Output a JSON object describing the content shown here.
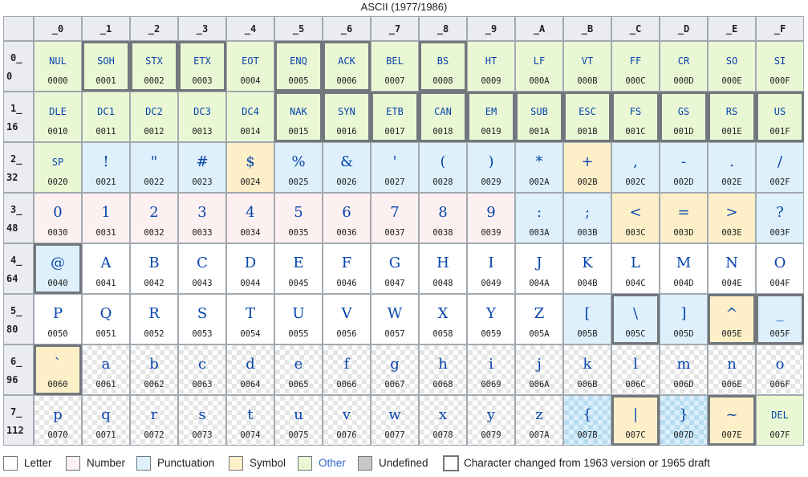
{
  "title": "ASCII (1977/1986)",
  "colors": {
    "letter": "#ffffff",
    "number": "#fdf0f0",
    "punctuation": "#ddf0fb",
    "symbol": "#fdf0c8",
    "other": "#eaf7d4",
    "undefined": "#c8c8c8",
    "header": "#eaecf0",
    "symbol_text": "#0645ad"
  },
  "columns": [
    "_0",
    "_1",
    "_2",
    "_3",
    "_4",
    "_5",
    "_6",
    "_7",
    "_8",
    "_9",
    "_A",
    "_B",
    "_C",
    "_D",
    "_E",
    "_F"
  ],
  "rows": [
    {
      "hex": "0_",
      "dec": "0",
      "cells": [
        {
          "s": "NUL",
          "c": "0000",
          "t": "other",
          "x": false
        },
        {
          "s": "SOH",
          "c": "0001",
          "t": "other",
          "x": true
        },
        {
          "s": "STX",
          "c": "0002",
          "t": "other",
          "x": true
        },
        {
          "s": "ETX",
          "c": "0003",
          "t": "other",
          "x": true
        },
        {
          "s": "EOT",
          "c": "0004",
          "t": "other",
          "x": false
        },
        {
          "s": "ENQ",
          "c": "0005",
          "t": "other",
          "x": true
        },
        {
          "s": "ACK",
          "c": "0006",
          "t": "other",
          "x": true
        },
        {
          "s": "BEL",
          "c": "0007",
          "t": "other",
          "x": false
        },
        {
          "s": "BS",
          "c": "0008",
          "t": "other",
          "x": true
        },
        {
          "s": "HT",
          "c": "0009",
          "t": "other",
          "x": false
        },
        {
          "s": "LF",
          "c": "000A",
          "t": "other",
          "x": false
        },
        {
          "s": "VT",
          "c": "000B",
          "t": "other",
          "x": false
        },
        {
          "s": "FF",
          "c": "000C",
          "t": "other",
          "x": false
        },
        {
          "s": "CR",
          "c": "000D",
          "t": "other",
          "x": false
        },
        {
          "s": "SO",
          "c": "000E",
          "t": "other",
          "x": false
        },
        {
          "s": "SI",
          "c": "000F",
          "t": "other",
          "x": false
        }
      ]
    },
    {
      "hex": "1_",
      "dec": "16",
      "cells": [
        {
          "s": "DLE",
          "c": "0010",
          "t": "other",
          "x": false
        },
        {
          "s": "DC1",
          "c": "0011",
          "t": "other",
          "x": false
        },
        {
          "s": "DC2",
          "c": "0012",
          "t": "other",
          "x": false
        },
        {
          "s": "DC3",
          "c": "0013",
          "t": "other",
          "x": false
        },
        {
          "s": "DC4",
          "c": "0014",
          "t": "other",
          "x": false
        },
        {
          "s": "NAK",
          "c": "0015",
          "t": "other",
          "x": true
        },
        {
          "s": "SYN",
          "c": "0016",
          "t": "other",
          "x": true
        },
        {
          "s": "ETB",
          "c": "0017",
          "t": "other",
          "x": true
        },
        {
          "s": "CAN",
          "c": "0018",
          "t": "other",
          "x": true
        },
        {
          "s": "EM",
          "c": "0019",
          "t": "other",
          "x": true
        },
        {
          "s": "SUB",
          "c": "001A",
          "t": "other",
          "x": true
        },
        {
          "s": "ESC",
          "c": "001B",
          "t": "other",
          "x": true
        },
        {
          "s": "FS",
          "c": "001C",
          "t": "other",
          "x": true
        },
        {
          "s": "GS",
          "c": "001D",
          "t": "other",
          "x": true
        },
        {
          "s": "RS",
          "c": "001E",
          "t": "other",
          "x": true
        },
        {
          "s": "US",
          "c": "001F",
          "t": "other",
          "x": true
        }
      ]
    },
    {
      "hex": "2_",
      "dec": "32",
      "cells": [
        {
          "s": "SP",
          "c": "0020",
          "t": "other",
          "x": false
        },
        {
          "s": "!",
          "c": "0021",
          "t": "punctuation",
          "x": false
        },
        {
          "s": "\"",
          "c": "0022",
          "t": "punctuation",
          "x": false
        },
        {
          "s": "#",
          "c": "0023",
          "t": "punctuation",
          "x": false
        },
        {
          "s": "$",
          "c": "0024",
          "t": "symbol",
          "x": false
        },
        {
          "s": "%",
          "c": "0025",
          "t": "punctuation",
          "x": false
        },
        {
          "s": "&",
          "c": "0026",
          "t": "punctuation",
          "x": false
        },
        {
          "s": "'",
          "c": "0027",
          "t": "punctuation",
          "x": false
        },
        {
          "s": "(",
          "c": "0028",
          "t": "punctuation",
          "x": false
        },
        {
          "s": ")",
          "c": "0029",
          "t": "punctuation",
          "x": false
        },
        {
          "s": "*",
          "c": "002A",
          "t": "punctuation",
          "x": false
        },
        {
          "s": "+",
          "c": "002B",
          "t": "symbol",
          "x": false
        },
        {
          "s": ",",
          "c": "002C",
          "t": "punctuation",
          "x": false
        },
        {
          "s": "-",
          "c": "002D",
          "t": "punctuation",
          "x": false
        },
        {
          "s": ".",
          "c": "002E",
          "t": "punctuation",
          "x": false
        },
        {
          "s": "/",
          "c": "002F",
          "t": "punctuation",
          "x": false
        }
      ]
    },
    {
      "hex": "3_",
      "dec": "48",
      "cells": [
        {
          "s": "0",
          "c": "0030",
          "t": "number",
          "x": false
        },
        {
          "s": "1",
          "c": "0031",
          "t": "number",
          "x": false
        },
        {
          "s": "2",
          "c": "0032",
          "t": "number",
          "x": false
        },
        {
          "s": "3",
          "c": "0033",
          "t": "number",
          "x": false
        },
        {
          "s": "4",
          "c": "0034",
          "t": "number",
          "x": false
        },
        {
          "s": "5",
          "c": "0035",
          "t": "number",
          "x": false
        },
        {
          "s": "6",
          "c": "0036",
          "t": "number",
          "x": false
        },
        {
          "s": "7",
          "c": "0037",
          "t": "number",
          "x": false
        },
        {
          "s": "8",
          "c": "0038",
          "t": "number",
          "x": false
        },
        {
          "s": "9",
          "c": "0039",
          "t": "number",
          "x": false
        },
        {
          "s": ":",
          "c": "003A",
          "t": "punctuation",
          "x": false
        },
        {
          "s": ";",
          "c": "003B",
          "t": "punctuation",
          "x": false
        },
        {
          "s": "<",
          "c": "003C",
          "t": "symbol",
          "x": false
        },
        {
          "s": "=",
          "c": "003D",
          "t": "symbol",
          "x": false
        },
        {
          "s": ">",
          "c": "003E",
          "t": "symbol",
          "x": false
        },
        {
          "s": "?",
          "c": "003F",
          "t": "punctuation",
          "x": false
        }
      ]
    },
    {
      "hex": "4_",
      "dec": "64",
      "cells": [
        {
          "s": "@",
          "c": "0040",
          "t": "punctuation",
          "x": true
        },
        {
          "s": "A",
          "c": "0041",
          "t": "letter",
          "x": false
        },
        {
          "s": "B",
          "c": "0042",
          "t": "letter",
          "x": false
        },
        {
          "s": "C",
          "c": "0043",
          "t": "letter",
          "x": false
        },
        {
          "s": "D",
          "c": "0044",
          "t": "letter",
          "x": false
        },
        {
          "s": "E",
          "c": "0045",
          "t": "letter",
          "x": false
        },
        {
          "s": "F",
          "c": "0046",
          "t": "letter",
          "x": false
        },
        {
          "s": "G",
          "c": "0047",
          "t": "letter",
          "x": false
        },
        {
          "s": "H",
          "c": "0048",
          "t": "letter",
          "x": false
        },
        {
          "s": "I",
          "c": "0049",
          "t": "letter",
          "x": false
        },
        {
          "s": "J",
          "c": "004A",
          "t": "letter",
          "x": false
        },
        {
          "s": "K",
          "c": "004B",
          "t": "letter",
          "x": false
        },
        {
          "s": "L",
          "c": "004C",
          "t": "letter",
          "x": false
        },
        {
          "s": "M",
          "c": "004D",
          "t": "letter",
          "x": false
        },
        {
          "s": "N",
          "c": "004E",
          "t": "letter",
          "x": false
        },
        {
          "s": "O",
          "c": "004F",
          "t": "letter",
          "x": false
        }
      ]
    },
    {
      "hex": "5_",
      "dec": "80",
      "cells": [
        {
          "s": "P",
          "c": "0050",
          "t": "letter",
          "x": false
        },
        {
          "s": "Q",
          "c": "0051",
          "t": "letter",
          "x": false
        },
        {
          "s": "R",
          "c": "0052",
          "t": "letter",
          "x": false
        },
        {
          "s": "S",
          "c": "0053",
          "t": "letter",
          "x": false
        },
        {
          "s": "T",
          "c": "0054",
          "t": "letter",
          "x": false
        },
        {
          "s": "U",
          "c": "0055",
          "t": "letter",
          "x": false
        },
        {
          "s": "V",
          "c": "0056",
          "t": "letter",
          "x": false
        },
        {
          "s": "W",
          "c": "0057",
          "t": "letter",
          "x": false
        },
        {
          "s": "X",
          "c": "0058",
          "t": "letter",
          "x": false
        },
        {
          "s": "Y",
          "c": "0059",
          "t": "letter",
          "x": false
        },
        {
          "s": "Z",
          "c": "005A",
          "t": "letter",
          "x": false
        },
        {
          "s": "[",
          "c": "005B",
          "t": "punctuation",
          "x": false
        },
        {
          "s": "\\",
          "c": "005C",
          "t": "punctuation",
          "x": true
        },
        {
          "s": "]",
          "c": "005D",
          "t": "punctuation",
          "x": false
        },
        {
          "s": "^",
          "c": "005E",
          "t": "symbol",
          "x": true
        },
        {
          "s": "_",
          "c": "005F",
          "t": "punctuation",
          "x": true
        }
      ]
    },
    {
      "hex": "6_",
      "dec": "96",
      "cells": [
        {
          "s": "`",
          "c": "0060",
          "t": "symbol",
          "x": true
        },
        {
          "s": "a",
          "c": "0061",
          "t": "letter-new",
          "x": false
        },
        {
          "s": "b",
          "c": "0062",
          "t": "letter-new",
          "x": false
        },
        {
          "s": "c",
          "c": "0063",
          "t": "letter-new",
          "x": false
        },
        {
          "s": "d",
          "c": "0064",
          "t": "letter-new",
          "x": false
        },
        {
          "s": "e",
          "c": "0065",
          "t": "letter-new",
          "x": false
        },
        {
          "s": "f",
          "c": "0066",
          "t": "letter-new",
          "x": false
        },
        {
          "s": "g",
          "c": "0067",
          "t": "letter-new",
          "x": false
        },
        {
          "s": "h",
          "c": "0068",
          "t": "letter-new",
          "x": false
        },
        {
          "s": "i",
          "c": "0069",
          "t": "letter-new",
          "x": false
        },
        {
          "s": "j",
          "c": "006A",
          "t": "letter-new",
          "x": false
        },
        {
          "s": "k",
          "c": "006B",
          "t": "letter-new",
          "x": false
        },
        {
          "s": "l",
          "c": "006C",
          "t": "letter-new",
          "x": false
        },
        {
          "s": "m",
          "c": "006D",
          "t": "letter-new",
          "x": false
        },
        {
          "s": "n",
          "c": "006E",
          "t": "letter-new",
          "x": false
        },
        {
          "s": "o",
          "c": "006F",
          "t": "letter-new",
          "x": false
        }
      ]
    },
    {
      "hex": "7_",
      "dec": "112",
      "cells": [
        {
          "s": "p",
          "c": "0070",
          "t": "letter-new",
          "x": false
        },
        {
          "s": "q",
          "c": "0071",
          "t": "letter-new",
          "x": false
        },
        {
          "s": "r",
          "c": "0072",
          "t": "letter-new",
          "x": false
        },
        {
          "s": "s",
          "c": "0073",
          "t": "letter-new",
          "x": false
        },
        {
          "s": "t",
          "c": "0074",
          "t": "letter-new",
          "x": false
        },
        {
          "s": "u",
          "c": "0075",
          "t": "letter-new",
          "x": false
        },
        {
          "s": "v",
          "c": "0076",
          "t": "letter-new",
          "x": false
        },
        {
          "s": "w",
          "c": "0077",
          "t": "letter-new",
          "x": false
        },
        {
          "s": "x",
          "c": "0078",
          "t": "letter-new",
          "x": false
        },
        {
          "s": "y",
          "c": "0079",
          "t": "letter-new",
          "x": false
        },
        {
          "s": "z",
          "c": "007A",
          "t": "letter-new",
          "x": false
        },
        {
          "s": "{",
          "c": "007B",
          "t": "punctuation-new",
          "x": false
        },
        {
          "s": "|",
          "c": "007C",
          "t": "symbol",
          "x": true
        },
        {
          "s": "}",
          "c": "007D",
          "t": "punctuation-new",
          "x": false
        },
        {
          "s": "~",
          "c": "007E",
          "t": "symbol",
          "x": true
        },
        {
          "s": "DEL",
          "c": "007F",
          "t": "other",
          "x": false
        }
      ]
    }
  ],
  "legend": {
    "letter": "Letter",
    "number": "Number",
    "punctuation": "Punctuation",
    "symbol": "Symbol",
    "other": "Other",
    "undefined": "Undefined",
    "changed": "Character changed from 1963 version or 1965 draft"
  }
}
